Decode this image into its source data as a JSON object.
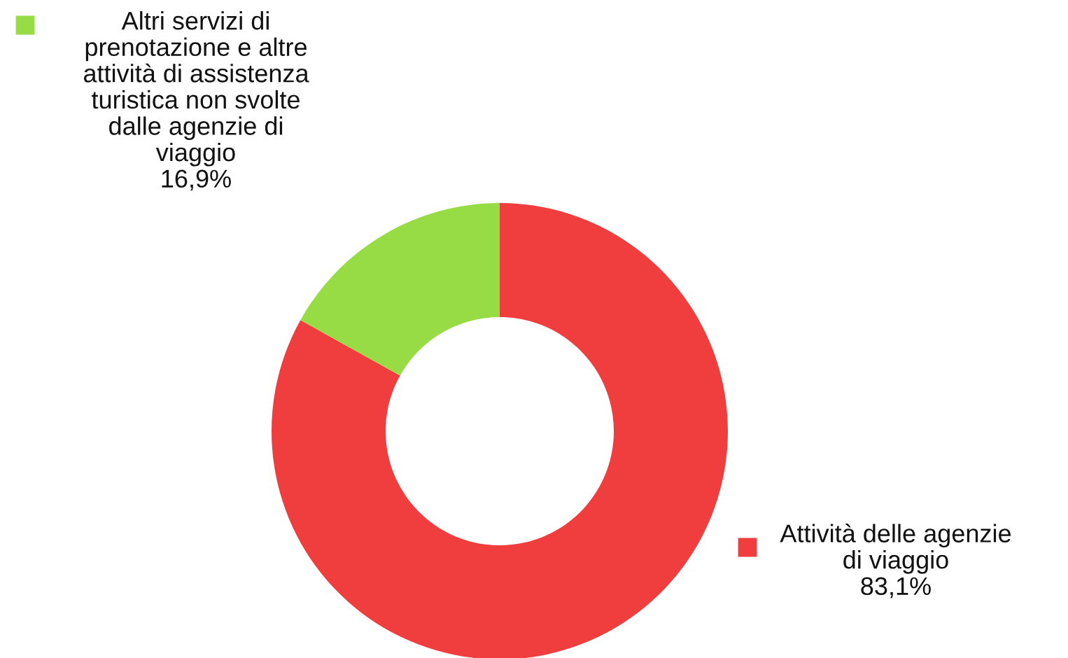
{
  "chart_data": {
    "type": "donut",
    "categories": [
      "Attività delle agenzie\ndi viaggio",
      "Altri servizi di\nprenotazione e altre\nattività di assistenza\nturistica non svolte\ndalle agenzie di\nviaggio"
    ],
    "values": [
      83.1,
      16.9
    ],
    "colors": [
      "#f03e3e",
      "#97dc45"
    ],
    "value_labels": [
      "83,1%",
      "16,9%"
    ]
  }
}
